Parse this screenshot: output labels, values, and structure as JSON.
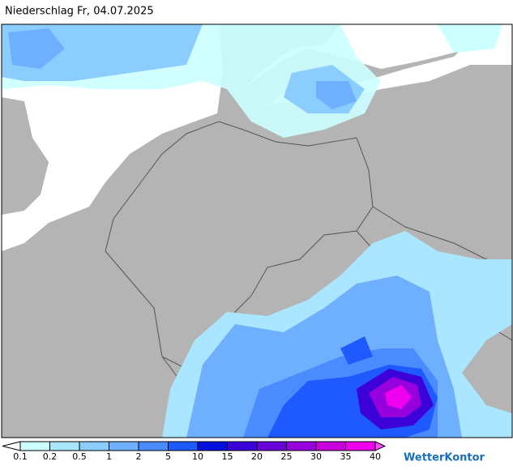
{
  "header": {
    "title": "Niederschlag Fr, 04.07.2025"
  },
  "legend": {
    "labels": [
      "0.1",
      "0.2",
      "0.5",
      "1",
      "2",
      "5",
      "10",
      "15",
      "20",
      "25",
      "30",
      "35",
      "40"
    ],
    "colors": [
      "#ffffff",
      "#ccffff",
      "#aae6ff",
      "#8ccdff",
      "#6eb0ff",
      "#4a8cff",
      "#1e5aff",
      "#0010e0",
      "#3c00d8",
      "#6a00d8",
      "#9600dc",
      "#c800dc",
      "#ee00ee",
      "#ff4cff"
    ]
  },
  "brand": "WetterKontor"
}
